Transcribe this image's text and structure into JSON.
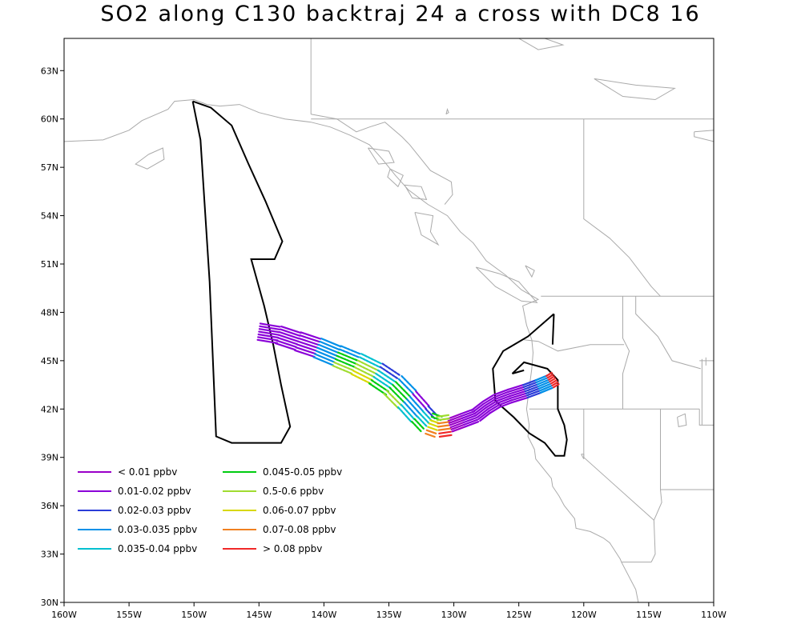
{
  "title": "SO2 along C130 backtraj 24 a cross with DC8 16",
  "map": {
    "lon_range": [
      -160,
      -110
    ],
    "lat_range": [
      30,
      65
    ],
    "lon_ticks": [
      {
        "v": -160,
        "label": "160W"
      },
      {
        "v": -155,
        "label": "155W"
      },
      {
        "v": -150,
        "label": "150W"
      },
      {
        "v": -145,
        "label": "145W"
      },
      {
        "v": -140,
        "label": "140W"
      },
      {
        "v": -135,
        "label": "135W"
      },
      {
        "v": -130,
        "label": "130W"
      },
      {
        "v": -125,
        "label": "125W"
      },
      {
        "v": -120,
        "label": "120W"
      },
      {
        "v": -115,
        "label": "115W"
      },
      {
        "v": -110,
        "label": "110W"
      }
    ],
    "lat_ticks": [
      {
        "v": 30,
        "label": "30N"
      },
      {
        "v": 33,
        "label": "33N"
      },
      {
        "v": 36,
        "label": "36N"
      },
      {
        "v": 39,
        "label": "39N"
      },
      {
        "v": 42,
        "label": "42N"
      },
      {
        "v": 45,
        "label": "45N"
      },
      {
        "v": 48,
        "label": "48N"
      },
      {
        "v": 51,
        "label": "51N"
      },
      {
        "v": 54,
        "label": "54N"
      },
      {
        "v": 57,
        "label": "57N"
      },
      {
        "v": 60,
        "label": "60N"
      },
      {
        "v": 63,
        "label": "63N"
      }
    ],
    "coast_color": "#aaaaaa",
    "coastline": [
      [
        -160,
        58.6
      ],
      [
        -157,
        58.7
      ],
      [
        -155,
        59.3
      ],
      [
        -154,
        59.9
      ],
      [
        -152,
        60.6
      ],
      [
        -151.5,
        61.1
      ],
      [
        -150,
        61.2
      ],
      [
        -149,
        60.9
      ],
      [
        -148,
        60.8
      ],
      [
        -146.5,
        60.9
      ],
      [
        -145,
        60.4
      ],
      [
        -143,
        60.0
      ],
      [
        -141,
        59.8
      ],
      [
        -139.5,
        59.5
      ],
      [
        -138,
        59.0
      ],
      [
        -136.5,
        58.4
      ],
      [
        -135.5,
        57.5
      ],
      [
        -134.5,
        56.5
      ],
      [
        -133.5,
        55.6
      ],
      [
        -132,
        54.7
      ],
      [
        -130.5,
        54.0
      ],
      [
        -129.5,
        53.0
      ],
      [
        -128.5,
        52.3
      ],
      [
        -127.5,
        51.2
      ],
      [
        -126,
        50.3
      ],
      [
        -124.8,
        49.4
      ],
      [
        -123.5,
        48.8
      ],
      [
        -124.7,
        48.4
      ],
      [
        -124.4,
        47.2
      ],
      [
        -124,
        46.3
      ],
      [
        -123.9,
        45.5
      ],
      [
        -124,
        44.5
      ],
      [
        -124.2,
        43.3
      ],
      [
        -124.4,
        42.0
      ],
      [
        -124.2,
        41.0
      ],
      [
        -124.3,
        40.3
      ],
      [
        -123.8,
        39.5
      ],
      [
        -123.7,
        38.9
      ],
      [
        -123,
        38.2
      ],
      [
        -122.5,
        37.7
      ],
      [
        -122.4,
        37.2
      ],
      [
        -121.9,
        36.6
      ],
      [
        -121.5,
        36.0
      ],
      [
        -120.7,
        35.2
      ],
      [
        -120.6,
        34.6
      ],
      [
        -119.5,
        34.4
      ],
      [
        -118.5,
        34.0
      ],
      [
        -118,
        33.7
      ],
      [
        -117.2,
        32.7
      ],
      [
        -117.1,
        32.5
      ],
      [
        -116,
        30.8
      ],
      [
        -115.8,
        30
      ]
    ],
    "islands": [
      [
        [
          -130.6,
          60.3
        ],
        [
          -130.5,
          60.6
        ],
        [
          -130.4,
          60.4
        ],
        [
          -130.6,
          60.3
        ]
      ],
      [
        [
          -153.5,
          57.8
        ],
        [
          -152.4,
          58.2
        ],
        [
          -152.3,
          57.5
        ],
        [
          -153.6,
          56.9
        ],
        [
          -154.5,
          57.2
        ],
        [
          -153.5,
          57.8
        ]
      ],
      [
        [
          -133,
          54.2
        ],
        [
          -131.6,
          54
        ],
        [
          -131.8,
          53
        ],
        [
          -131.2,
          52.2
        ],
        [
          -132.5,
          52.8
        ],
        [
          -133,
          54.2
        ]
      ],
      [
        [
          -128.3,
          50.8
        ],
        [
          -126.5,
          50.4
        ],
        [
          -125,
          49.9
        ],
        [
          -123.6,
          48.6
        ],
        [
          -124.8,
          48.7
        ],
        [
          -126.8,
          49.6
        ],
        [
          -128.3,
          50.8
        ]
      ],
      [
        [
          -136.6,
          58.2
        ],
        [
          -135,
          58
        ],
        [
          -134.6,
          57.3
        ],
        [
          -135.8,
          57.2
        ],
        [
          -136.6,
          58.2
        ]
      ],
      [
        [
          -134.9,
          56.9
        ],
        [
          -133.9,
          56.5
        ],
        [
          -134.3,
          55.8
        ],
        [
          -135.1,
          56.4
        ],
        [
          -134.9,
          56.9
        ]
      ],
      [
        [
          -133.8,
          55.9
        ],
        [
          -132.5,
          55.8
        ],
        [
          -132.1,
          55.0
        ],
        [
          -133.2,
          55.1
        ],
        [
          -133.8,
          55.9
        ]
      ]
    ],
    "lakes": [
      [
        [
          -119.2,
          62.5
        ],
        [
          -116,
          62.1
        ],
        [
          -113,
          61.9
        ],
        [
          -114.5,
          61.2
        ],
        [
          -117,
          61.4
        ],
        [
          -119.2,
          62.5
        ]
      ],
      [
        [
          -125,
          65
        ],
        [
          -123.5,
          64.3
        ],
        [
          -121.6,
          64.6
        ],
        [
          -123,
          65
        ]
      ],
      [
        [
          -111.5,
          59.2
        ],
        [
          -110,
          59.3
        ],
        [
          -110,
          58.6
        ],
        [
          -111.5,
          58.9
        ],
        [
          -111.5,
          59.2
        ]
      ],
      [
        [
          -124.5,
          50.9
        ],
        [
          -124.0,
          50.2
        ],
        [
          -123.8,
          50.6
        ],
        [
          -124.5,
          50.9
        ]
      ],
      [
        [
          -112.8,
          41.5
        ],
        [
          -112.2,
          41.7
        ],
        [
          -112.1,
          41.0
        ],
        [
          -112.7,
          40.9
        ],
        [
          -112.8,
          41.5
        ]
      ],
      [
        [
          -120.2,
          39.2
        ],
        [
          -120.0,
          39.2
        ],
        [
          -120.0,
          38.9
        ],
        [
          -120.2,
          39.2
        ]
      ]
    ],
    "borders": [
      [
        [
          -141,
          69.5
        ],
        [
          -141,
          60.3
        ]
      ],
      [
        [
          -141,
          60.3
        ],
        [
          -139,
          60
        ],
        [
          -137.5,
          59.2
        ],
        [
          -136.5,
          59.5
        ],
        [
          -135.3,
          59.8
        ],
        [
          -134,
          58.9
        ],
        [
          -133.4,
          58.4
        ],
        [
          -131.8,
          56.8
        ],
        [
          -130.2,
          56.1
        ],
        [
          -130.1,
          55.3
        ],
        [
          -130.7,
          54.7
        ]
      ],
      [
        [
          -123.3,
          49.0
        ],
        [
          -110,
          49.0
        ]
      ],
      [
        [
          -141,
          60
        ],
        [
          -110,
          60
        ]
      ],
      [
        [
          -120,
          60
        ],
        [
          -120,
          53.8
        ],
        [
          -118,
          52.6
        ],
        [
          -116.5,
          51.4
        ],
        [
          -114.8,
          49.6
        ],
        [
          -114.1,
          49
        ]
      ],
      [
        [
          -124.6,
          46.3
        ],
        [
          -123.5,
          46.2
        ],
        [
          -122,
          45.6
        ],
        [
          -119.5,
          46
        ],
        [
          -116.9,
          46
        ]
      ],
      [
        [
          -124.2,
          42
        ],
        [
          -111.1,
          42
        ]
      ],
      [
        [
          -117,
          49
        ],
        [
          -117,
          46.4
        ],
        [
          -116.5,
          45.6
        ],
        [
          -117,
          44.2
        ],
        [
          -117,
          42
        ]
      ],
      [
        [
          -116,
          49
        ],
        [
          -116,
          47.9
        ],
        [
          -114.3,
          46.5
        ],
        [
          -113.2,
          45
        ],
        [
          -111,
          44.5
        ]
      ],
      [
        [
          -111.1,
          45
        ],
        [
          -110,
          45
        ]
      ],
      [
        [
          -120,
          42
        ],
        [
          -120,
          39
        ],
        [
          -114.6,
          35.1
        ]
      ],
      [
        [
          -114.1,
          42
        ],
        [
          -114.1,
          37
        ],
        [
          -114,
          36.2
        ],
        [
          -114.6,
          35.1
        ],
        [
          -114.5,
          33
        ],
        [
          -114.8,
          32.5
        ]
      ],
      [
        [
          -114.8,
          32.5
        ],
        [
          -117.1,
          32.5
        ]
      ],
      [
        [
          -114.1,
          37
        ],
        [
          -110,
          37
        ]
      ],
      [
        [
          -111.1,
          42
        ],
        [
          -111.1,
          41
        ],
        [
          -110,
          41
        ]
      ],
      [
        [
          -110.6,
          45.2
        ],
        [
          -110.6,
          44.7
        ]
      ]
    ],
    "state_label_square": [
      [
        -110.9,
        45.1
      ],
      [
        -110.9,
        41.0
      ]
    ],
    "flight_track_color": "#000000",
    "flight_track": [
      [
        -150.1,
        61.1
      ],
      [
        -148.7,
        60.7
      ],
      [
        -147.1,
        59.6
      ],
      [
        -145.8,
        57.2
      ],
      [
        -144.5,
        54.9
      ],
      [
        -143.2,
        52.4
      ],
      [
        -143.8,
        51.3
      ],
      [
        -145.6,
        51.3
      ],
      [
        -144.6,
        48.4
      ],
      [
        -143.9,
        46.0
      ],
      [
        -143.3,
        43.5
      ],
      [
        -142.6,
        40.9
      ],
      [
        -143.3,
        39.9
      ],
      [
        -147.1,
        39.9
      ],
      [
        -148.3,
        40.3
      ],
      [
        -148.8,
        49.9
      ],
      [
        -149.5,
        58.7
      ],
      [
        -150.1,
        61.1
      ]
    ],
    "flight_track_2": [
      [
        -122.3,
        47.9
      ],
      [
        -124.3,
        46.5
      ],
      [
        -126.2,
        45.6
      ],
      [
        -127.0,
        44.5
      ],
      [
        -126.8,
        42.5
      ],
      [
        -125.4,
        41.5
      ],
      [
        -124.2,
        40.5
      ],
      [
        -123.0,
        39.9
      ],
      [
        -122.2,
        39.1
      ],
      [
        -121.5,
        39.1
      ],
      [
        -121.3,
        40.1
      ],
      [
        -121.5,
        41.0
      ],
      [
        -122.0,
        42.0
      ],
      [
        -122.0,
        43.8
      ],
      [
        -122.8,
        44.5
      ],
      [
        -124.6,
        44.9
      ],
      [
        -125.5,
        44.2
      ],
      [
        -124.6,
        44.4
      ]
    ],
    "flight_track_3": [
      [
        -122.3,
        47.9
      ],
      [
        -122.4,
        46.0
      ]
    ]
  },
  "chart_data": {
    "type": "map",
    "title": "SO2 along C130 backtraj 24 a cross with DC8 16",
    "trajectory_center": [
      [
        -145.0,
        46.8
      ],
      [
        -143.5,
        46.6
      ],
      [
        -142.0,
        46.2
      ],
      [
        -140.5,
        45.8
      ],
      [
        -139.0,
        45.3
      ],
      [
        -137.5,
        44.8
      ],
      [
        -136.0,
        44.2
      ],
      [
        -134.7,
        43.5
      ],
      [
        -133.6,
        42.6
      ],
      [
        -132.6,
        41.7
      ],
      [
        -131.9,
        41.1
      ],
      [
        -131.2,
        40.9
      ],
      [
        -130.3,
        41.0
      ],
      [
        -129.3,
        41.3
      ],
      [
        -128.3,
        41.6
      ],
      [
        -127.5,
        42.1
      ],
      [
        -126.7,
        42.5
      ],
      [
        -125.7,
        42.8
      ],
      [
        -124.5,
        43.1
      ],
      [
        -123.5,
        43.4
      ],
      [
        -122.6,
        43.7
      ],
      [
        -122.2,
        43.9
      ]
    ],
    "trajectory_bins": [
      1,
      1,
      1,
      3,
      5,
      6,
      4,
      5,
      3,
      4,
      7,
      8,
      0,
      1,
      1,
      1,
      1,
      1,
      2,
      3,
      9
    ],
    "legend": [
      {
        "label": "< 0.01 ppbv",
        "color": "#9a00c8"
      },
      {
        "label": "0.01-0.02 ppbv",
        "color": "#8a00d8"
      },
      {
        "label": "0.02-0.03 ppbv",
        "color": "#2a3cd8"
      },
      {
        "label": "0.03-0.035 ppbv",
        "color": "#0090e8"
      },
      {
        "label": "0.035-0.04 ppbv",
        "color": "#00c0d0"
      },
      {
        "label": "0.045-0.05 ppbv",
        "color": "#00cc10"
      },
      {
        "label": "0.5-0.6 ppbv",
        "color": "#a0dc30"
      },
      {
        "label": "0.06-0.07 ppbv",
        "color": "#d8d800"
      },
      {
        "label": "0.07-0.08 ppbv",
        "color": "#f08020"
      },
      {
        "label": "> 0.08 ppbv",
        "color": "#f02828"
      }
    ]
  }
}
